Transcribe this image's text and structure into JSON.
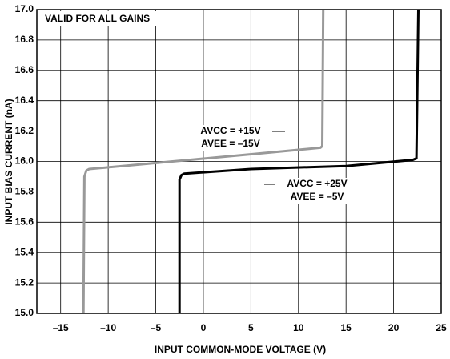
{
  "chart_data": {
    "type": "line",
    "xlabel": "INPUT COMMON-MODE VOLTAGE (V)",
    "ylabel": "INPUT BIAS CURRENT (nA)",
    "annotations": [
      "VALID FOR ALL GAINS",
      "AVCC = +15V",
      "AVEE = –15V",
      "AVCC = +25V",
      "AVEE = –5V"
    ],
    "xlim": [
      -17.5,
      25
    ],
    "xticks": [
      {
        "value": -15,
        "label": "–15"
      },
      {
        "value": -10,
        "label": "–10"
      },
      {
        "value": -5,
        "label": "–5"
      },
      0,
      5,
      10,
      15,
      20,
      25
    ],
    "ylim": [
      15.0,
      17.0
    ],
    "yticks": [
      {
        "value": 15.0,
        "label": "15.0"
      },
      15.2,
      15.4,
      15.6,
      15.8,
      {
        "value": 16.0,
        "label": "16.0"
      },
      16.2,
      16.4,
      16.6,
      16.8,
      {
        "value": 17.0,
        "label": "17.0"
      }
    ],
    "grid": true,
    "series": [
      {
        "name": "AVCC = +15V, AVEE = –15V",
        "color": "#999999",
        "x": [
          -12.6,
          -12.5,
          -12.3,
          -12.0,
          5.5,
          12.3,
          12.5,
          12.6
        ],
        "values": [
          15.0,
          15.9,
          15.94,
          15.95,
          16.05,
          16.09,
          16.1,
          17.0
        ]
      },
      {
        "name": "AVCC = +25V, AVEE = –5V",
        "color": "#000000",
        "x": [
          -2.5,
          -2.5,
          -2.3,
          -2.0,
          5.0,
          15.0,
          22.0,
          22.4,
          22.6
        ],
        "values": [
          15.0,
          15.88,
          15.91,
          15.92,
          15.95,
          15.97,
          16.01,
          16.02,
          17.0
        ]
      }
    ]
  }
}
